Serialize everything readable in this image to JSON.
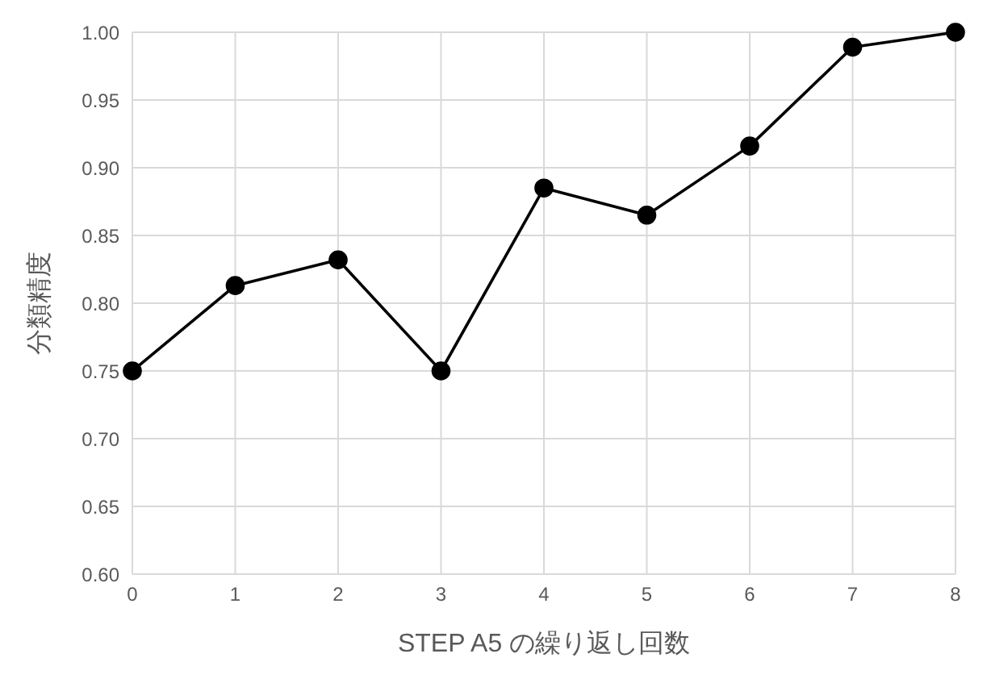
{
  "chart_data": {
    "type": "line",
    "xlabel": "STEP A5 の繰り返し回数",
    "ylabel": "分類精度",
    "x": [
      0,
      1,
      2,
      3,
      4,
      5,
      6,
      7,
      8
    ],
    "series": [
      {
        "color": "#000000",
        "values": [
          0.75,
          0.813,
          0.832,
          0.75,
          0.885,
          0.865,
          0.916,
          0.989,
          1.0
        ]
      }
    ],
    "xlim": [
      0,
      8
    ],
    "xticks": [
      0,
      1,
      2,
      3,
      4,
      5,
      6,
      7,
      8
    ],
    "ylim": [
      0.6,
      1.0
    ],
    "yticks": [
      {
        "value": 0.6,
        "label": "0.60"
      },
      {
        "value": 0.65,
        "label": "0.65"
      },
      {
        "value": 0.7,
        "label": "0.70"
      },
      {
        "value": 0.75,
        "label": "0.75"
      },
      {
        "value": 0.8,
        "label": "0.80"
      },
      {
        "value": 0.85,
        "label": "0.85"
      },
      {
        "value": 0.9,
        "label": "0.90"
      },
      {
        "value": 0.95,
        "label": "0.95"
      },
      {
        "value": 1.0,
        "label": "1.00"
      }
    ],
    "grid": true,
    "marker": "circle",
    "line_style": "solid"
  }
}
